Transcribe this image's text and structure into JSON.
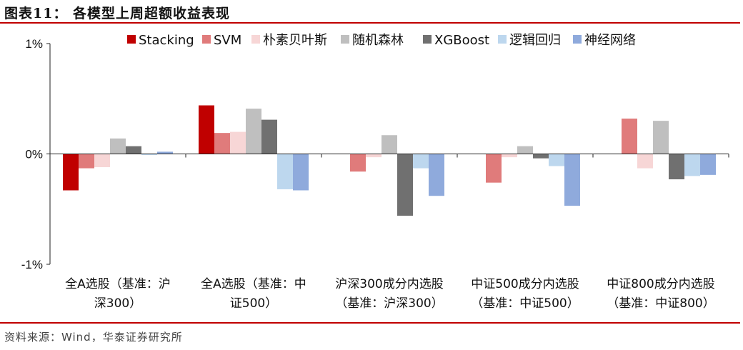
{
  "header": {
    "title": "图表11：  各模型上周超额收益表现"
  },
  "footer": {
    "source": "资料来源：Wind，华泰证券研究所"
  },
  "colors": {
    "rule": "#c00000",
    "series": [
      "#c00000",
      "#e07b7b",
      "#f7d6d6",
      "#bfbfbf",
      "#707070",
      "#bdd7ee",
      "#8faadc"
    ]
  },
  "chart_data": {
    "type": "bar",
    "ylim": [
      -1,
      1
    ],
    "yticks": [
      {
        "value": 1,
        "label": "1%"
      },
      {
        "value": 0,
        "label": "0%"
      },
      {
        "value": -1,
        "label": "-1%"
      }
    ],
    "categories": [
      [
        "全A选股（基准：沪",
        "深300）"
      ],
      [
        "全A选股（基准：中",
        "证500）"
      ],
      [
        "沪深300成分内选股",
        "（基准：沪深300）"
      ],
      [
        "中证500成分内选股",
        "（基准：中证500）"
      ],
      [
        "中证800成分内选股",
        "（基准：中证800）"
      ]
    ],
    "legend_position": "top",
    "series": [
      {
        "name": "Stacking",
        "color": "#c00000",
        "values": [
          -0.33,
          0.44,
          null,
          null,
          null
        ]
      },
      {
        "name": "SVM",
        "color": "#e07b7b",
        "values": [
          -0.13,
          0.19,
          -0.16,
          -0.26,
          0.32
        ]
      },
      {
        "name": "朴素贝叶斯",
        "color": "#f7d6d6",
        "values": [
          -0.12,
          0.2,
          -0.03,
          -0.03,
          -0.13
        ]
      },
      {
        "name": "随机森林",
        "color": "#bfbfbf",
        "values": [
          0.14,
          0.41,
          0.17,
          0.07,
          0.3
        ]
      },
      {
        "name": "XGBoost",
        "color": "#707070",
        "values": [
          0.07,
          0.31,
          -0.56,
          -0.04,
          -0.23
        ]
      },
      {
        "name": "逻辑回归",
        "color": "#bdd7ee",
        "values": [
          -0.01,
          -0.32,
          -0.13,
          -0.11,
          -0.2
        ]
      },
      {
        "name": "神经网络",
        "color": "#8faadc",
        "values": [
          0.02,
          -0.33,
          -0.38,
          -0.47,
          -0.19
        ]
      }
    ]
  }
}
